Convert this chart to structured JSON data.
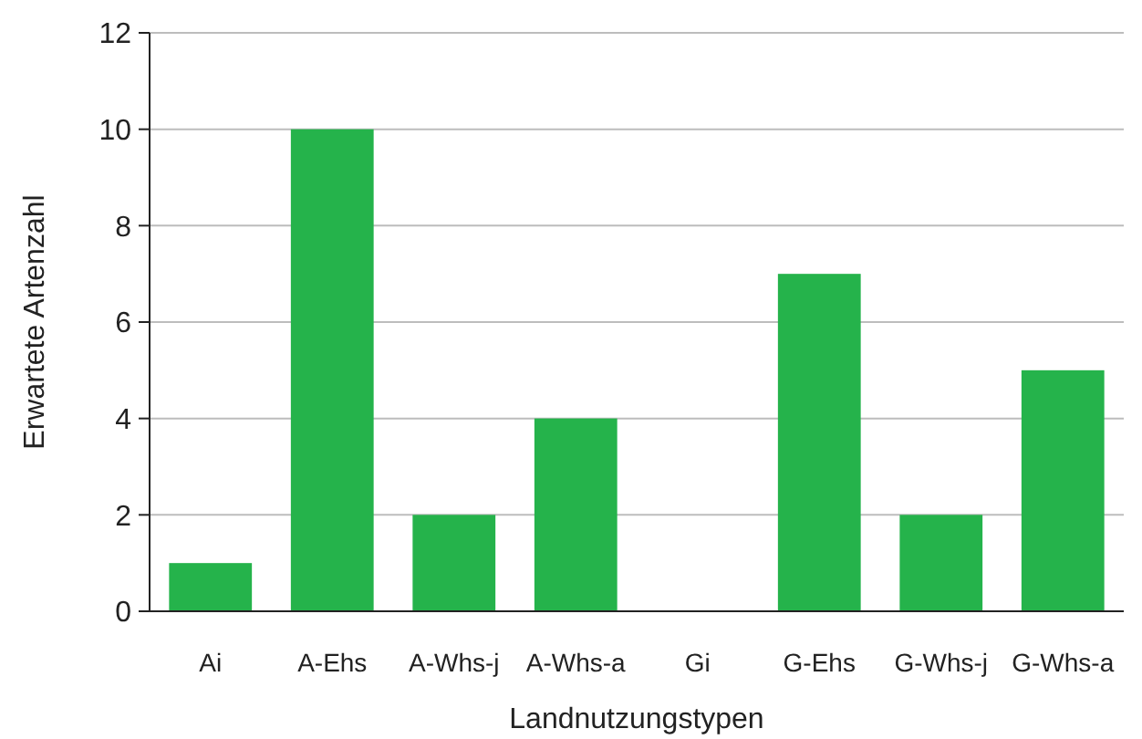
{
  "chart_data": {
    "type": "bar",
    "xlabel": "Landnutzungstypen",
    "ylabel": "Erwartete Artenzahl",
    "categories": [
      "Ai",
      "A-Ehs",
      "A-Whs-j",
      "A-Whs-a",
      "Gi",
      "G-Ehs",
      "G-Whs-j",
      "G-Whs-a"
    ],
    "values": [
      1,
      10,
      2,
      4,
      0,
      7,
      2,
      5
    ],
    "color": "#25b34b",
    "ylim": [
      0,
      12
    ],
    "yticks": [
      0,
      2,
      4,
      6,
      8,
      10,
      12
    ],
    "grid": "y"
  }
}
